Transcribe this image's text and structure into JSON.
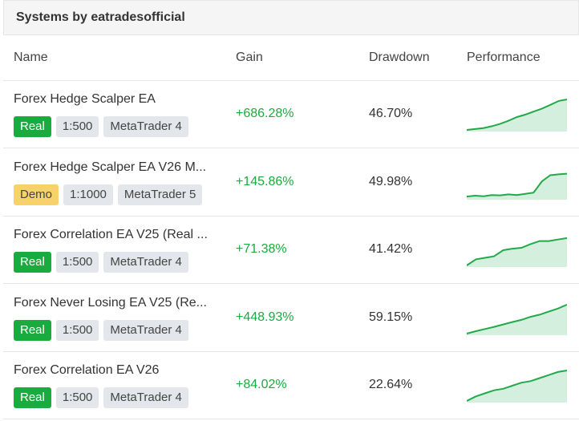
{
  "header": {
    "title": "Systems by eatradesofficial"
  },
  "table": {
    "columns": [
      "Name",
      "Gain",
      "Drawdown",
      "Performance"
    ],
    "rows": [
      {
        "name": "Forex Hedge Scalper EA",
        "account": "Real",
        "leverage": "1:500",
        "platform": "MetaTrader 4",
        "gain": "+686.28%",
        "drawdown": "46.70%",
        "performance": [
          0,
          3,
          6,
          12,
          20,
          30,
          42,
          50,
          60,
          70,
          82,
          95,
          100
        ]
      },
      {
        "name": "Forex Hedge Scalper EA V26 M...",
        "account": "Demo",
        "leverage": "1:1000",
        "platform": "MetaTrader 5",
        "gain": "+145.86%",
        "drawdown": "49.98%",
        "performance": [
          5,
          8,
          6,
          10,
          9,
          12,
          10,
          14,
          18,
          55,
          75,
          78,
          80
        ]
      },
      {
        "name": "Forex Correlation EA V25 (Real ...",
        "account": "Real",
        "leverage": "1:500",
        "platform": "MetaTrader 4",
        "gain": "+71.38%",
        "drawdown": "41.42%",
        "performance": [
          0,
          20,
          25,
          30,
          50,
          55,
          58,
          70,
          80,
          80,
          85,
          90
        ]
      },
      {
        "name": "Forex Never Losing EA V25 (Re...",
        "account": "Real",
        "leverage": "1:500",
        "platform": "MetaTrader 4",
        "gain": "+448.93%",
        "drawdown": "59.15%",
        "performance": [
          0,
          8,
          15,
          22,
          30,
          38,
          45,
          55,
          62,
          72,
          82,
          95
        ]
      },
      {
        "name": "Forex Correlation EA V26",
        "account": "Real",
        "leverage": "1:500",
        "platform": "MetaTrader 4",
        "gain": "+84.02%",
        "drawdown": "22.64%",
        "performance": [
          0,
          15,
          25,
          35,
          40,
          50,
          60,
          65,
          75,
          85,
          95,
          100
        ]
      }
    ]
  }
}
